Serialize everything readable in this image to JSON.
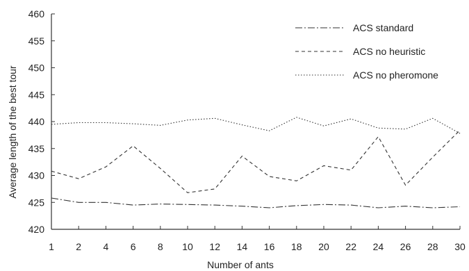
{
  "chart_data": {
    "type": "line",
    "title": "",
    "xlabel": "Number of ants",
    "ylabel": "Average length of the best tour",
    "x": [
      1,
      2,
      4,
      6,
      8,
      10,
      12,
      14,
      16,
      18,
      20,
      22,
      24,
      26,
      28,
      30
    ],
    "x_tick_labels": [
      "1",
      "2",
      "4",
      "6",
      "8",
      "10",
      "12",
      "14",
      "16",
      "18",
      "20",
      "22",
      "24",
      "26",
      "28",
      "30"
    ],
    "ylim": [
      420,
      460
    ],
    "y_ticks": [
      420,
      425,
      430,
      435,
      440,
      445,
      450,
      455,
      460
    ],
    "y_tick_labels": [
      "420",
      "425",
      "430",
      "435",
      "440",
      "445",
      "450",
      "455",
      "460"
    ],
    "grid": false,
    "legend_position": "top-right",
    "series": [
      {
        "name": "ACS standard",
        "dash": "10,3,2,3",
        "color": "#333333",
        "values": [
          425.8,
          425.0,
          425.0,
          424.5,
          424.7,
          424.6,
          424.5,
          424.3,
          424.0,
          424.4,
          424.6,
          424.5,
          424.0,
          424.3,
          424.0,
          424.2
        ]
      },
      {
        "name": "ACS no heuristic",
        "dash": "5,4",
        "color": "#333333",
        "values": [
          430.8,
          429.4,
          431.6,
          435.5,
          431.3,
          426.8,
          427.5,
          433.6,
          429.8,
          429.0,
          431.8,
          431.0,
          437.2,
          428.2,
          433.4,
          438.4
        ]
      },
      {
        "name": "ACS no pheromone",
        "dash": "1.5,2.5",
        "color": "#333333",
        "values": [
          439.5,
          439.8,
          439.8,
          439.6,
          439.3,
          440.3,
          440.6,
          439.4,
          438.3,
          440.8,
          439.2,
          440.5,
          438.8,
          438.6,
          440.6,
          437.8
        ]
      }
    ]
  }
}
